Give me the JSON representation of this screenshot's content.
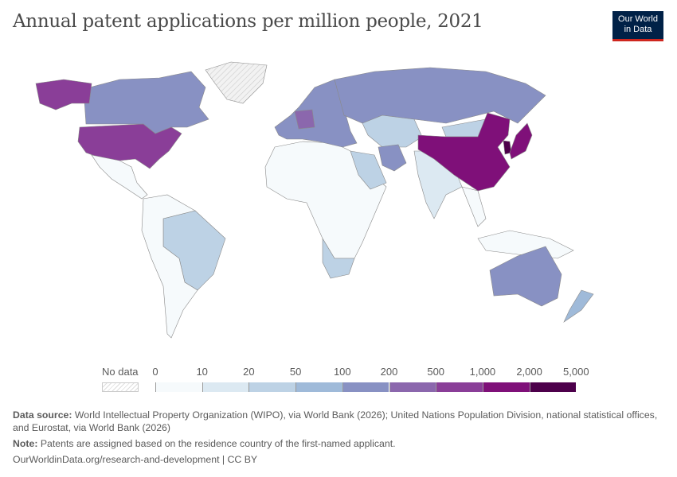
{
  "title": "Annual patent applications per million people, 2021",
  "logo": {
    "line1": "Our World",
    "line2": "in Data"
  },
  "chart_data": {
    "type": "choropleth",
    "title": "Annual patent applications per million people, 2021",
    "legend": {
      "no_data_label": "No data",
      "ticks": [
        "0",
        "10",
        "20",
        "50",
        "100",
        "200",
        "500",
        "1,000",
        "2,000",
        "5,000"
      ],
      "bins": [
        {
          "range": [
            0,
            10
          ],
          "color": "#f6fafc"
        },
        {
          "range": [
            10,
            20
          ],
          "color": "#dce9f2"
        },
        {
          "range": [
            20,
            50
          ],
          "color": "#bdd2e5"
        },
        {
          "range": [
            50,
            100
          ],
          "color": "#9fbad9"
        },
        {
          "range": [
            100,
            200
          ],
          "color": "#8891c3"
        },
        {
          "range": [
            200,
            500
          ],
          "color": "#8b67ad"
        },
        {
          "range": [
            500,
            1000
          ],
          "color": "#8a3e98"
        },
        {
          "range": [
            1000,
            2000
          ],
          "color": "#7f1079"
        },
        {
          "range": [
            2000,
            5000
          ],
          "color": "#4d004b"
        }
      ],
      "no_data_color": "#e8e8e8"
    },
    "regions": [
      {
        "name": "Canada",
        "bin": "100-200"
      },
      {
        "name": "United States",
        "bin": "500-1,000"
      },
      {
        "name": "Greenland",
        "bin": "No data"
      },
      {
        "name": "Mexico & Central America",
        "bin": "0-10"
      },
      {
        "name": "Brazil",
        "bin": "20-50"
      },
      {
        "name": "Rest of South America",
        "bin": "0-10"
      },
      {
        "name": "Africa",
        "bin": "0-10"
      },
      {
        "name": "South Africa",
        "bin": "20-50"
      },
      {
        "name": "Western Europe",
        "bin": "100-200"
      },
      {
        "name": "Germany",
        "bin": "200-500"
      },
      {
        "name": "Russia",
        "bin": "100-200"
      },
      {
        "name": "Central Asia",
        "bin": "20-50"
      },
      {
        "name": "Iran",
        "bin": "100-200"
      },
      {
        "name": "Saudi Arabia",
        "bin": "20-50"
      },
      {
        "name": "India",
        "bin": "10-20"
      },
      {
        "name": "China",
        "bin": "1,000-2,000"
      },
      {
        "name": "South Korea",
        "bin": "2,000-5,000"
      },
      {
        "name": "Japan",
        "bin": "1,000-2,000"
      },
      {
        "name": "Southeast Asia",
        "bin": "0-10"
      },
      {
        "name": "Australia",
        "bin": "100-200"
      },
      {
        "name": "New Zealand",
        "bin": "50-100"
      }
    ]
  },
  "footer": {
    "source_label": "Data source:",
    "source_text": "World Intellectual Property Organization (WIPO), via World Bank (2026); United Nations Population Division, national statistical offices, and Eurostat, via World Bank (2026)",
    "note_label": "Note:",
    "note_text": "Patents are assigned based on the residence country of the first-named applicant.",
    "url": "OurWorldinData.org/research-and-development | CC BY"
  }
}
